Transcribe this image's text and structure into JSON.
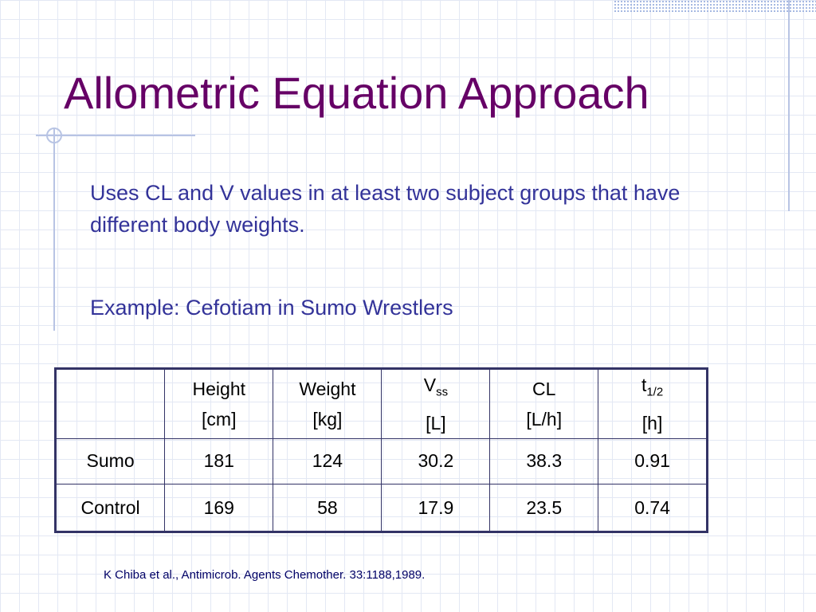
{
  "title": "Allometric Equation Approach",
  "bullets": [
    "Uses CL and V values in at least two subject groups that have different body weights.",
    "Example: Cefotiam in Sumo Wrestlers"
  ],
  "table": {
    "header": [
      {
        "text": "Height",
        "unit": "[cm]"
      },
      {
        "text": "Weight",
        "unit": "[kg]"
      },
      {
        "text": "V",
        "sub": "ss",
        "unit": "[L]"
      },
      {
        "text": "CL",
        "unit": "[L/h]"
      },
      {
        "text": "t",
        "sub": "1/2",
        "unit": "[h]"
      }
    ],
    "rows": [
      [
        "Sumo",
        181,
        124,
        30.2,
        38.3,
        0.91
      ],
      [
        "Control",
        169,
        58,
        17.9,
        23.5,
        0.74
      ]
    ]
  },
  "citation": "K Chiba et al., Antimicrob. Agents Chemother. 33:1188,1989."
}
